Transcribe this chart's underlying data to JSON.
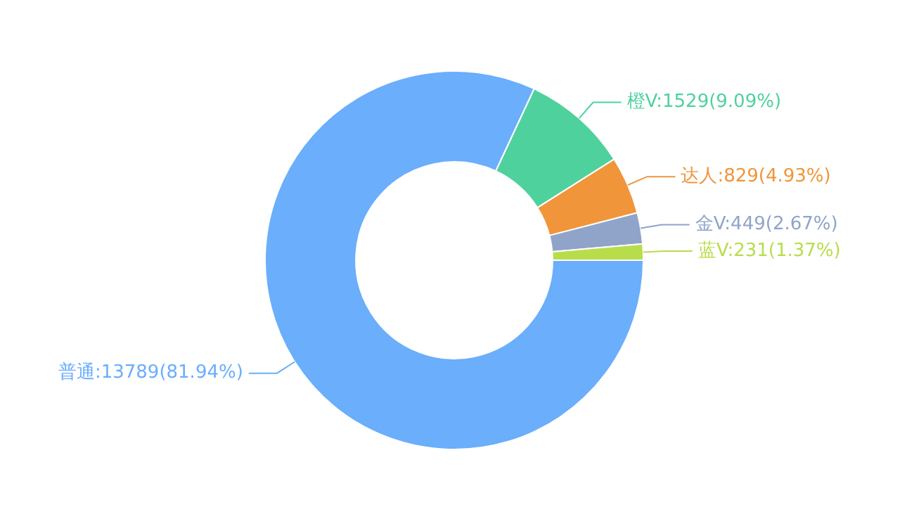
{
  "chart_data": {
    "type": "donut",
    "categories": [
      "普通",
      "橙V",
      "达人",
      "金V",
      "蓝V"
    ],
    "values": [
      13789,
      1529,
      829,
      449,
      231
    ],
    "value_labels": [
      "13789(81.94%)",
      "1529(9.09%)",
      "829(4.93%)",
      "449(2.67%)",
      "231(1.37%)"
    ],
    "colors": [
      "#6aaefc",
      "#4fd19e",
      "#f0953a",
      "#8fa4c8",
      "#b8dd4a"
    ],
    "legend": false
  }
}
